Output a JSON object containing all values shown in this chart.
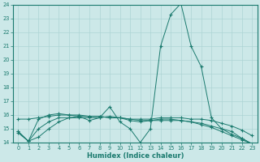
{
  "xlabel": "Humidex (Indice chaleur)",
  "ylabel": "",
  "bg_color": "#cce8e8",
  "line_color": "#1a7a6e",
  "grid_color": "#add4d4",
  "xlim_min": -0.5,
  "xlim_max": 23.5,
  "ylim_min": 14,
  "ylim_max": 24,
  "yticks": [
    14,
    15,
    16,
    17,
    18,
    19,
    20,
    21,
    22,
    23,
    24
  ],
  "xticks": [
    0,
    1,
    2,
    3,
    4,
    5,
    6,
    7,
    8,
    9,
    10,
    11,
    12,
    13,
    14,
    15,
    16,
    17,
    18,
    19,
    20,
    21,
    22,
    23
  ],
  "series": [
    {
      "x": [
        0,
        1,
        2,
        3,
        4,
        5,
        6,
        7,
        8,
        9,
        10,
        11,
        12,
        13,
        14,
        15,
        16,
        17,
        18,
        19,
        20,
        21,
        22,
        23
      ],
      "y": [
        14.8,
        14.1,
        15.7,
        16.0,
        16.1,
        16.0,
        15.9,
        15.6,
        15.8,
        16.6,
        15.5,
        15.0,
        14.0,
        15.0,
        21.0,
        23.3,
        24.1,
        21.0,
        19.5,
        15.8,
        15.0,
        14.8,
        14.3,
        13.9
      ]
    },
    {
      "x": [
        0,
        1,
        2,
        3,
        4,
        5,
        6,
        7,
        8,
        9,
        10,
        11,
        12,
        13,
        14,
        15,
        16,
        17,
        18,
        19,
        20,
        21,
        22,
        23
      ],
      "y": [
        15.7,
        15.7,
        15.8,
        15.9,
        16.0,
        16.0,
        16.0,
        15.9,
        15.9,
        15.8,
        15.8,
        15.7,
        15.7,
        15.7,
        15.8,
        15.8,
        15.8,
        15.7,
        15.7,
        15.6,
        15.4,
        15.2,
        14.9,
        14.5
      ]
    },
    {
      "x": [
        0,
        1,
        2,
        3,
        4,
        5,
        6,
        7,
        8,
        9,
        10,
        11,
        12,
        13,
        14,
        15,
        16,
        17,
        18,
        19,
        20,
        21,
        22,
        23
      ],
      "y": [
        14.7,
        14.1,
        14.4,
        15.0,
        15.5,
        15.8,
        15.9,
        15.9,
        15.9,
        15.8,
        15.8,
        15.7,
        15.6,
        15.6,
        15.6,
        15.6,
        15.6,
        15.5,
        15.4,
        15.2,
        15.0,
        14.6,
        14.3,
        13.9
      ]
    },
    {
      "x": [
        0,
        1,
        2,
        3,
        4,
        5,
        6,
        7,
        8,
        9,
        10,
        11,
        12,
        13,
        14,
        15,
        16,
        17,
        18,
        19,
        20,
        21,
        22,
        23
      ],
      "y": [
        14.8,
        14.1,
        15.0,
        15.5,
        15.8,
        15.8,
        15.8,
        15.8,
        15.8,
        15.9,
        15.8,
        15.6,
        15.5,
        15.6,
        15.7,
        15.7,
        15.6,
        15.5,
        15.3,
        15.1,
        14.8,
        14.5,
        14.2,
        13.9
      ]
    }
  ]
}
